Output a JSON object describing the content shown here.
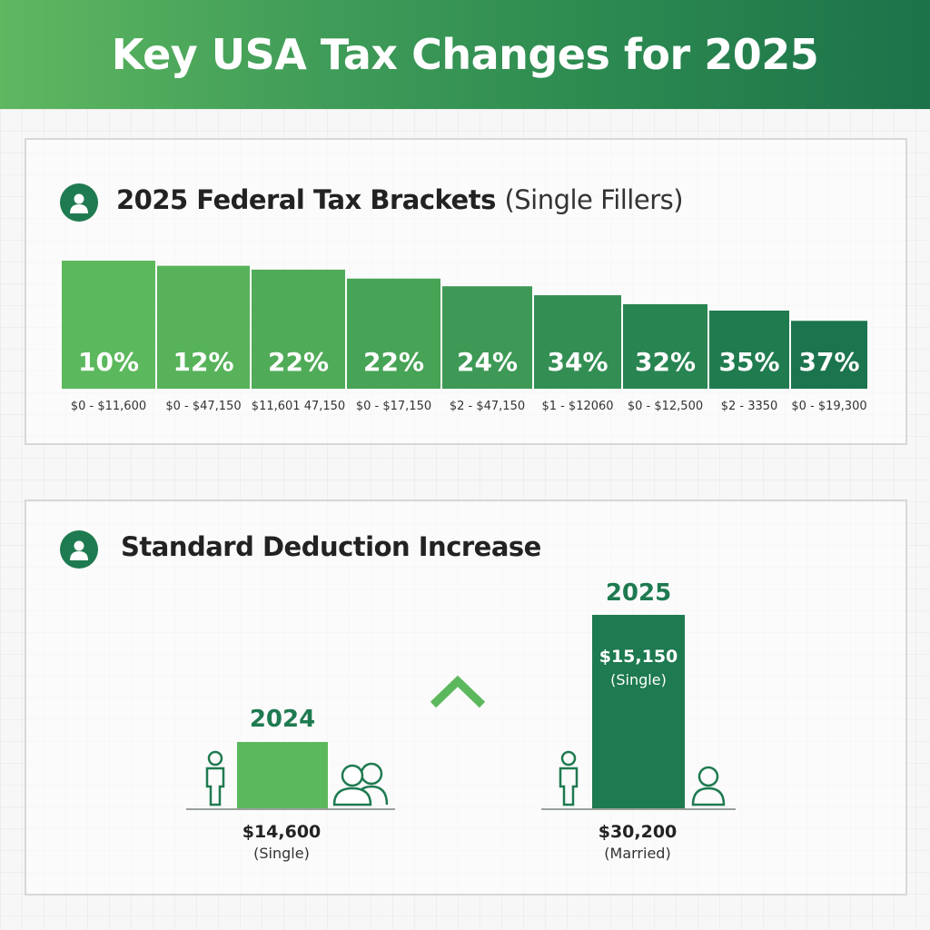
{
  "header": {
    "title": "Key USA Tax Changes for 2025"
  },
  "brackets_section": {
    "title": "2025 Federal Tax Brackets",
    "subtitle": "(Single Fillers)",
    "icon": "person-icon"
  },
  "deduction_section": {
    "title": "Standard Deduction Increase",
    "icon": "person-icon",
    "arrow_icon": "chevron-up-icon",
    "year_2024": "2024",
    "year_2025": "2025",
    "amount_2024": "$14,600",
    "amount_2024_sub": "(Single)",
    "bar_2025_amount": "$15,150",
    "bar_2025_sub": "(Single)",
    "amount_2025": "$30,200",
    "amount_2025_sub": "(Married)"
  },
  "colors": {
    "light_green": "#5cb85c",
    "dark_green": "#1e7a50",
    "accent": "#1e7a50"
  },
  "chart_data": [
    {
      "type": "bar",
      "title": "2025 Federal Tax Brackets (Single Fillers)",
      "categories": [
        "$0 - $11,600",
        "$0 - $47,150",
        "$11,601 47,150",
        "$0 - $17,150",
        "$2 - $47,150",
        "$1 - $12060",
        "$0 - $12,500",
        "$2 - 3350",
        "$0 - $19,300"
      ],
      "labels": [
        "10%",
        "12%",
        "22%",
        "22%",
        "24%",
        "34%",
        "32%",
        "35%",
        "37%"
      ],
      "values": [
        100,
        96,
        93,
        86,
        80,
        73,
        66,
        61,
        53
      ],
      "colors": [
        "#5cb85c",
        "#57b25a",
        "#50ab58",
        "#47a356",
        "#3d9955",
        "#338e53",
        "#288451",
        "#207b4f",
        "#1b744d"
      ]
    },
    {
      "type": "bar",
      "title": "Standard Deduction Increase",
      "categories": [
        "2024",
        "2025"
      ],
      "values": [
        14600,
        30200
      ],
      "labels": [
        "$14,600",
        "$30,200"
      ]
    }
  ]
}
